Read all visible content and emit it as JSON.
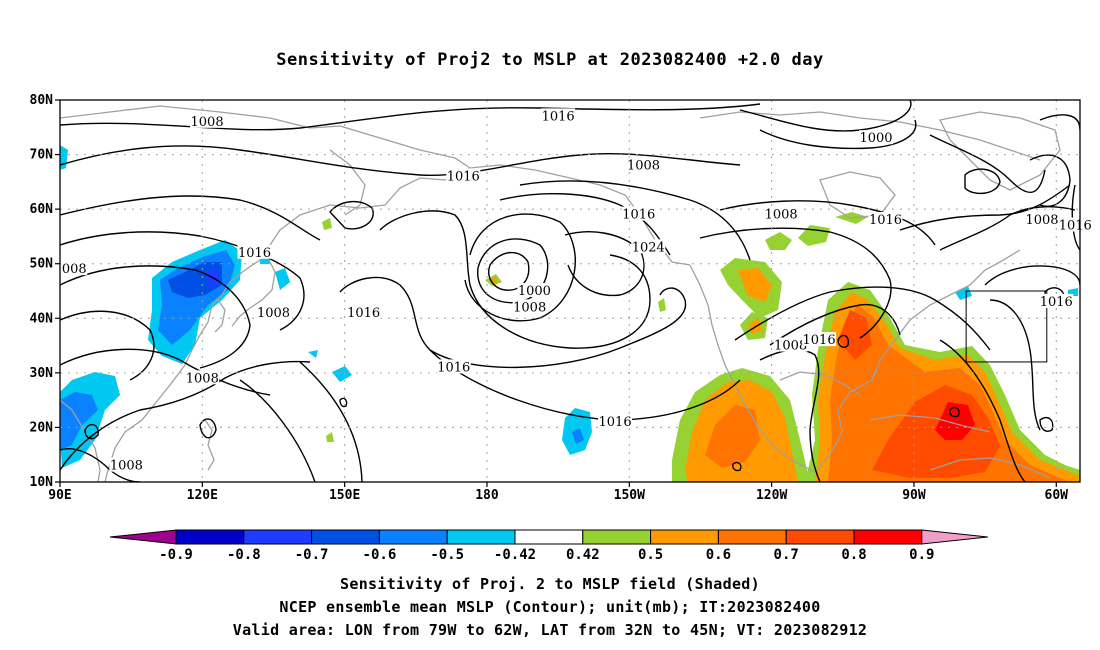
{
  "title": "Sensitivity of Proj2 to MSLP at 2023082400 +2.0 day",
  "map": {
    "lon_range": [
      90,
      305
    ],
    "lat_range": [
      10,
      80
    ],
    "lat_ticks": [
      {
        "lat": 80,
        "label": "80N"
      },
      {
        "lat": 70,
        "label": "70N"
      },
      {
        "lat": 60,
        "label": "60N"
      },
      {
        "lat": 50,
        "label": "50N"
      },
      {
        "lat": 40,
        "label": "40N"
      },
      {
        "lat": 30,
        "label": "30N"
      },
      {
        "lat": 20,
        "label": "20N"
      },
      {
        "lat": 10,
        "label": "10N"
      }
    ],
    "lon_ticks": [
      {
        "lon": 90,
        "label": "90E"
      },
      {
        "lon": 120,
        "label": "120E"
      },
      {
        "lon": 150,
        "label": "150E"
      },
      {
        "lon": 180,
        "label": "180"
      },
      {
        "lon": 210,
        "label": "150W"
      },
      {
        "lon": 240,
        "label": "120W"
      },
      {
        "lon": 270,
        "label": "90W"
      },
      {
        "lon": 300,
        "label": "60W"
      }
    ],
    "grid": true,
    "valid_box": {
      "lon": [
        281,
        298
      ],
      "lat": [
        32,
        45
      ]
    },
    "contour_labels": [
      {
        "text": "1008",
        "lon": 121,
        "lat": 76
      },
      {
        "text": "1016",
        "lon": 195,
        "lat": 77
      },
      {
        "text": "1008",
        "lon": 213,
        "lat": 68
      },
      {
        "text": "1016",
        "lon": 175,
        "lat": 66
      },
      {
        "text": "1000",
        "lon": 262,
        "lat": 73
      },
      {
        "text": "1016",
        "lon": 212,
        "lat": 59
      },
      {
        "text": "1024",
        "lon": 214,
        "lat": 53
      },
      {
        "text": "1008",
        "lon": 242,
        "lat": 59
      },
      {
        "text": "1016",
        "lon": 264,
        "lat": 58
      },
      {
        "text": "1008",
        "lon": 297,
        "lat": 58
      },
      {
        "text": "1016",
        "lon": 304,
        "lat": 57
      },
      {
        "text": "1016",
        "lon": 131,
        "lat": 52
      },
      {
        "text": "008",
        "lon": 93,
        "lat": 49
      },
      {
        "text": "1000",
        "lon": 190,
        "lat": 45
      },
      {
        "text": "1008",
        "lon": 189,
        "lat": 42
      },
      {
        "text": "1008",
        "lon": 135,
        "lat": 41
      },
      {
        "text": "1016",
        "lon": 154,
        "lat": 41
      },
      {
        "text": "1016",
        "lon": 300,
        "lat": 43
      },
      {
        "text": "1008",
        "lon": 244,
        "lat": 35
      },
      {
        "text": "1016",
        "lon": 250,
        "lat": 36
      },
      {
        "text": "1008",
        "lon": 120,
        "lat": 29
      },
      {
        "text": "1016",
        "lon": 173,
        "lat": 31
      },
      {
        "text": "1016",
        "lon": 207,
        "lat": 21
      },
      {
        "text": "1008",
        "lon": 104,
        "lat": 13
      }
    ]
  },
  "colorbar": {
    "levels": [
      "-0.9",
      "-0.8",
      "-0.7",
      "-0.6",
      "-0.5",
      "-0.42",
      "0.42",
      "0.5",
      "0.6",
      "0.7",
      "0.8",
      "0.9"
    ],
    "colors": [
      "#a00090",
      "#0000c8",
      "#1e3cff",
      "#0050e6",
      "#0a82ff",
      "#00c8f0",
      "#ffffff",
      "#96d232",
      "#ff9a00",
      "#ff7300",
      "#ff4b00",
      "#ff0000",
      "#f0a0c8"
    ]
  },
  "captions": {
    "line1": "Sensitivity of Proj. 2 to MSLP field (Shaded)",
    "line2": "NCEP ensemble mean MSLP (Contour); unit(mb); IT:2023082400",
    "line3": "Valid area: LON from 79W to 62W, LAT from 32N to 45N; VT: 2023082912"
  }
}
